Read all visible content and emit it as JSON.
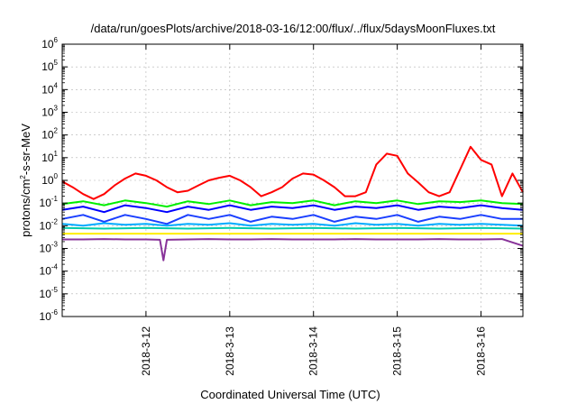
{
  "chart_data": {
    "type": "line",
    "title": "/data/run/goesPlots/archive/2018-03-16/12:00/flux/../flux/5daysMoonFluxes.txt",
    "xlabel": "Coordinated Universal Time (UTC)",
    "ylabel": "protons/cm²-s-sr-MeV",
    "ylabel_parts": {
      "base": "protons/cm",
      "sup": "2",
      "rest": "-s-sr-MeV"
    },
    "y_scale": "log",
    "ylim": [
      1e-06,
      1000000.0
    ],
    "y_ticks": [
      {
        "base": "10",
        "exp": "-6"
      },
      {
        "base": "10",
        "exp": "-5"
      },
      {
        "base": "10",
        "exp": "-4"
      },
      {
        "base": "10",
        "exp": "-3"
      },
      {
        "base": "10",
        "exp": "-2"
      },
      {
        "base": "10",
        "exp": "-1"
      },
      {
        "base": "10",
        "exp": "0"
      },
      {
        "base": "10",
        "exp": "1"
      },
      {
        "base": "10",
        "exp": "2"
      },
      {
        "base": "10",
        "exp": "3"
      },
      {
        "base": "10",
        "exp": "4"
      },
      {
        "base": "10",
        "exp": "5"
      },
      {
        "base": "10",
        "exp": "6"
      }
    ],
    "x_range": [
      "2018-03-11 00:00",
      "2018-03-16 12:00"
    ],
    "x_ticks": [
      "2018-3-12",
      "2018-3-13",
      "2018-3-14",
      "2018-3-15",
      "2018-3-16"
    ],
    "grid": true,
    "legend": "none",
    "series": [
      {
        "color": "#ff0000",
        "x": [
          "2018-03-11 00:00",
          "2018-03-11 03:00",
          "2018-03-11 06:00",
          "2018-03-11 09:00",
          "2018-03-11 12:00",
          "2018-03-11 15:00",
          "2018-03-11 18:00",
          "2018-03-11 21:00",
          "2018-03-12 00:00",
          "2018-03-12 03:00",
          "2018-03-12 06:00",
          "2018-03-12 09:00",
          "2018-03-12 12:00",
          "2018-03-12 15:00",
          "2018-03-12 18:00",
          "2018-03-12 21:00",
          "2018-03-13 00:00",
          "2018-03-13 03:00",
          "2018-03-13 06:00",
          "2018-03-13 09:00",
          "2018-03-13 12:00",
          "2018-03-13 15:00",
          "2018-03-13 18:00",
          "2018-03-13 21:00",
          "2018-03-14 00:00",
          "2018-03-14 03:00",
          "2018-03-14 06:00",
          "2018-03-14 09:00",
          "2018-03-14 12:00",
          "2018-03-14 15:00",
          "2018-03-14 18:00",
          "2018-03-14 21:00",
          "2018-03-15 00:00",
          "2018-03-15 03:00",
          "2018-03-15 06:00",
          "2018-03-15 09:00",
          "2018-03-15 12:00",
          "2018-03-15 15:00",
          "2018-03-15 18:00",
          "2018-03-15 21:00",
          "2018-03-16 00:00",
          "2018-03-16 03:00",
          "2018-03-16 06:00",
          "2018-03-16 09:00",
          "2018-03-16 12:00"
        ],
        "y": [
          0.9,
          0.5,
          0.25,
          0.15,
          0.25,
          0.6,
          1.2,
          2.0,
          1.6,
          1.0,
          0.5,
          0.3,
          0.35,
          0.6,
          1.0,
          1.3,
          1.6,
          1.0,
          0.5,
          0.2,
          0.3,
          0.5,
          1.2,
          2.0,
          1.8,
          1.0,
          0.5,
          0.2,
          0.2,
          0.3,
          5.0,
          15.0,
          12.0,
          2.0,
          0.8,
          0.3,
          0.2,
          0.3,
          3.0,
          30.0,
          8.0,
          5.0,
          0.2,
          2.0,
          0.3
        ]
      },
      {
        "color": "#00ee00",
        "x": [
          "2018-03-11 00:00",
          "2018-03-11 06:00",
          "2018-03-11 12:00",
          "2018-03-11 18:00",
          "2018-03-12 00:00",
          "2018-03-12 06:00",
          "2018-03-12 12:00",
          "2018-03-12 18:00",
          "2018-03-13 00:00",
          "2018-03-13 06:00",
          "2018-03-13 12:00",
          "2018-03-13 18:00",
          "2018-03-14 00:00",
          "2018-03-14 06:00",
          "2018-03-14 12:00",
          "2018-03-14 18:00",
          "2018-03-15 00:00",
          "2018-03-15 06:00",
          "2018-03-15 12:00",
          "2018-03-15 18:00",
          "2018-03-16 00:00",
          "2018-03-16 06:00",
          "2018-03-16 12:00"
        ],
        "y": [
          0.09,
          0.12,
          0.08,
          0.13,
          0.1,
          0.07,
          0.12,
          0.09,
          0.13,
          0.08,
          0.11,
          0.1,
          0.13,
          0.08,
          0.12,
          0.1,
          0.13,
          0.09,
          0.12,
          0.11,
          0.13,
          0.1,
          0.09
        ]
      },
      {
        "color": "#0000ff",
        "x": [
          "2018-03-11 00:00",
          "2018-03-11 06:00",
          "2018-03-11 12:00",
          "2018-03-11 18:00",
          "2018-03-12 00:00",
          "2018-03-12 06:00",
          "2018-03-12 12:00",
          "2018-03-12 18:00",
          "2018-03-13 00:00",
          "2018-03-13 06:00",
          "2018-03-13 12:00",
          "2018-03-13 18:00",
          "2018-03-14 00:00",
          "2018-03-14 06:00",
          "2018-03-14 12:00",
          "2018-03-14 18:00",
          "2018-03-15 00:00",
          "2018-03-15 06:00",
          "2018-03-15 12:00",
          "2018-03-15 18:00",
          "2018-03-16 00:00",
          "2018-03-16 06:00",
          "2018-03-16 12:00"
        ],
        "y": [
          0.05,
          0.07,
          0.04,
          0.08,
          0.06,
          0.04,
          0.07,
          0.05,
          0.08,
          0.05,
          0.07,
          0.06,
          0.08,
          0.05,
          0.07,
          0.06,
          0.08,
          0.05,
          0.07,
          0.06,
          0.08,
          0.06,
          0.05
        ]
      },
      {
        "color": "#1a3fff",
        "x": [
          "2018-03-11 00:00",
          "2018-03-11 06:00",
          "2018-03-11 12:00",
          "2018-03-11 18:00",
          "2018-03-12 00:00",
          "2018-03-12 06:00",
          "2018-03-12 12:00",
          "2018-03-12 18:00",
          "2018-03-13 00:00",
          "2018-03-13 06:00",
          "2018-03-13 12:00",
          "2018-03-13 18:00",
          "2018-03-14 00:00",
          "2018-03-14 06:00",
          "2018-03-14 12:00",
          "2018-03-14 18:00",
          "2018-03-15 00:00",
          "2018-03-15 06:00",
          "2018-03-15 12:00",
          "2018-03-15 18:00",
          "2018-03-16 00:00",
          "2018-03-16 06:00",
          "2018-03-16 12:00"
        ],
        "y": [
          0.02,
          0.03,
          0.015,
          0.03,
          0.02,
          0.012,
          0.03,
          0.02,
          0.03,
          0.015,
          0.025,
          0.02,
          0.03,
          0.015,
          0.025,
          0.02,
          0.03,
          0.015,
          0.025,
          0.02,
          0.03,
          0.02,
          0.02
        ]
      },
      {
        "color": "#00aaff",
        "x": [
          "2018-03-11 00:00",
          "2018-03-11 06:00",
          "2018-03-11 12:00",
          "2018-03-11 18:00",
          "2018-03-12 00:00",
          "2018-03-12 06:00",
          "2018-03-12 12:00",
          "2018-03-12 18:00",
          "2018-03-13 00:00",
          "2018-03-13 06:00",
          "2018-03-13 12:00",
          "2018-03-13 18:00",
          "2018-03-14 00:00",
          "2018-03-14 06:00",
          "2018-03-14 12:00",
          "2018-03-14 18:00",
          "2018-03-15 00:00",
          "2018-03-15 06:00",
          "2018-03-15 12:00",
          "2018-03-15 18:00",
          "2018-03-16 00:00",
          "2018-03-16 06:00",
          "2018-03-16 12:00"
        ],
        "y": [
          0.012,
          0.01,
          0.013,
          0.011,
          0.012,
          0.01,
          0.012,
          0.011,
          0.013,
          0.01,
          0.012,
          0.011,
          0.012,
          0.01,
          0.013,
          0.011,
          0.012,
          0.01,
          0.012,
          0.011,
          0.012,
          0.011,
          0.01
        ]
      },
      {
        "color": "#00ccaa",
        "x": [
          "2018-03-11 00:00",
          "2018-03-11 12:00",
          "2018-03-12 00:00",
          "2018-03-12 12:00",
          "2018-03-13 00:00",
          "2018-03-13 12:00",
          "2018-03-14 00:00",
          "2018-03-14 12:00",
          "2018-03-15 00:00",
          "2018-03-15 12:00",
          "2018-03-16 00:00",
          "2018-03-16 12:00"
        ],
        "y": [
          0.008,
          0.0075,
          0.008,
          0.0075,
          0.008,
          0.0075,
          0.008,
          0.0075,
          0.008,
          0.0075,
          0.008,
          0.0075
        ]
      },
      {
        "color": "#ffee00",
        "x": [
          "2018-03-11 00:00",
          "2018-03-11 12:00",
          "2018-03-12 00:00",
          "2018-03-12 12:00",
          "2018-03-13 00:00",
          "2018-03-13 12:00",
          "2018-03-14 00:00",
          "2018-03-14 12:00",
          "2018-03-15 00:00",
          "2018-03-15 12:00",
          "2018-03-16 00:00",
          "2018-03-16 12:00"
        ],
        "y": [
          0.0045,
          0.0045,
          0.0045,
          0.0045,
          0.0045,
          0.0045,
          0.0045,
          0.0045,
          0.0045,
          0.0045,
          0.0045,
          0.0045
        ]
      },
      {
        "color": "#883399",
        "x": [
          "2018-03-11 00:00",
          "2018-03-11 06:00",
          "2018-03-11 12:00",
          "2018-03-11 18:00",
          "2018-03-12 00:00",
          "2018-03-12 04:00",
          "2018-03-12 05:00",
          "2018-03-12 06:00",
          "2018-03-12 12:00",
          "2018-03-12 18:00",
          "2018-03-13 00:00",
          "2018-03-13 06:00",
          "2018-03-13 12:00",
          "2018-03-13 18:00",
          "2018-03-14 00:00",
          "2018-03-14 06:00",
          "2018-03-14 12:00",
          "2018-03-14 18:00",
          "2018-03-15 00:00",
          "2018-03-15 06:00",
          "2018-03-15 12:00",
          "2018-03-15 18:00",
          "2018-03-16 00:00",
          "2018-03-16 06:00",
          "2018-03-16 12:00"
        ],
        "y": [
          0.0025,
          0.0025,
          0.0026,
          0.0025,
          0.0025,
          0.0024,
          0.0003,
          0.0024,
          0.0025,
          0.0026,
          0.0025,
          0.0025,
          0.0026,
          0.0025,
          0.0025,
          0.0025,
          0.0026,
          0.0025,
          0.0025,
          0.0025,
          0.0026,
          0.0025,
          0.0025,
          0.0026,
          0.0013
        ]
      }
    ]
  }
}
